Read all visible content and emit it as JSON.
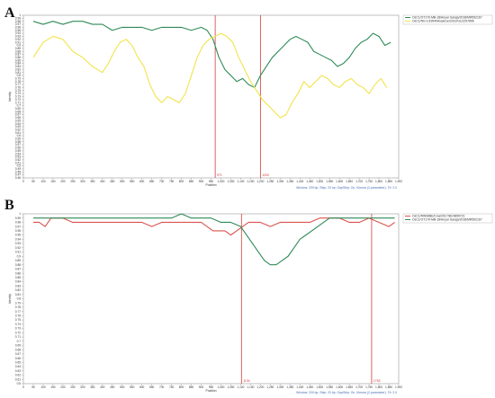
{
  "panels": [
    {
      "letter": "A"
    },
    {
      "letter": "B"
    }
  ],
  "chart_data": [
    {
      "type": "line",
      "panel": "A",
      "xlabel": "Position",
      "ylabel": "Identity",
      "xlim": [
        0,
        1900
      ],
      "ylim": [
        0.46,
        1.0
      ],
      "x_ticks": [
        0,
        50,
        100,
        150,
        200,
        250,
        300,
        350,
        400,
        450,
        500,
        550,
        600,
        650,
        700,
        750,
        800,
        850,
        900,
        950,
        1000,
        1050,
        1100,
        1150,
        1200,
        1250,
        1300,
        1350,
        1400,
        1450,
        1500,
        1550,
        1600,
        1650,
        1700,
        1750,
        1800,
        1850,
        1900
      ],
      "x_tick_labels": [
        "0",
        "50",
        "100",
        "150",
        "200",
        "250",
        "300",
        "350",
        "400",
        "450",
        "500",
        "550",
        "600",
        "650",
        "700",
        "750",
        "800",
        "850",
        "900",
        "950",
        "1,000",
        "1,050",
        "1,100",
        "1,150",
        "1,200",
        "1,250",
        "1,300",
        "1,350",
        "1,400",
        "1,450",
        "1,500",
        "1,550",
        "1,600",
        "1,650",
        "1,700",
        "1,750",
        "1,800",
        "1,850",
        "1,900"
      ],
      "y_ticks": [
        0.46,
        0.47,
        0.48,
        0.49,
        0.5,
        0.51,
        0.52,
        0.53,
        0.54,
        0.55,
        0.56,
        0.57,
        0.58,
        0.59,
        0.6,
        0.61,
        0.62,
        0.63,
        0.64,
        0.65,
        0.66,
        0.67,
        0.68,
        0.69,
        0.7,
        0.71,
        0.72,
        0.73,
        0.74,
        0.75,
        0.76,
        0.77,
        0.78,
        0.79,
        0.8,
        0.81,
        0.82,
        0.83,
        0.84,
        0.85,
        0.86,
        0.87,
        0.88,
        0.89,
        0.9,
        0.91,
        0.92,
        0.93,
        0.94,
        0.95,
        0.96,
        0.97,
        0.98,
        0.99,
        1.0
      ],
      "y_tick_labels": [
        "0.46",
        "0.47",
        "0.48",
        "0.49",
        "0.5",
        "0.51",
        "0.52",
        "0.53",
        "0.54",
        "0.55",
        "0.56",
        "0.57",
        "0.58",
        "0.59",
        "0.6",
        "0.61",
        "0.62",
        "0.63",
        "0.64",
        "0.65",
        "0.66",
        "0.67",
        "0.68",
        "0.69",
        "0.7",
        "0.71",
        "0.72",
        "0.73",
        "0.74",
        "0.75",
        "0.76",
        "0.77",
        "0.78",
        "0.79",
        "0.8",
        "0.81",
        "0.82",
        "0.83",
        "0.84",
        "0.85",
        "0.86",
        "0.87",
        "0.88",
        "0.89",
        "0.9",
        "0.91",
        "0.92",
        "0.93",
        "0.94",
        "0.95",
        "0.96",
        "0.97",
        "0.98",
        "0.99",
        "1"
      ],
      "breakpoints": [
        {
          "x": 971,
          "label": "971"
        },
        {
          "x": 1200,
          "label": "1200"
        }
      ],
      "legend_position": "top-right",
      "series": [
        {
          "name": "OsC1/OT170-MB-18/Anyar Saraja/2018/MR592167",
          "color": "#2e8b57",
          "x": [
            50,
            100,
            150,
            200,
            250,
            300,
            350,
            400,
            450,
            500,
            550,
            600,
            650,
            700,
            750,
            800,
            850,
            900,
            930,
            960,
            990,
            1020,
            1050,
            1080,
            1110,
            1140,
            1170,
            1200,
            1230,
            1260,
            1290,
            1320,
            1350,
            1380,
            1410,
            1440,
            1470,
            1500,
            1530,
            1560,
            1590,
            1620,
            1650,
            1680,
            1710,
            1740,
            1770,
            1800,
            1830,
            1860
          ],
          "y": [
            0.98,
            0.97,
            0.98,
            0.97,
            0.98,
            0.98,
            0.97,
            0.97,
            0.95,
            0.96,
            0.96,
            0.96,
            0.95,
            0.96,
            0.96,
            0.96,
            0.95,
            0.96,
            0.95,
            0.92,
            0.86,
            0.82,
            0.8,
            0.78,
            0.79,
            0.77,
            0.76,
            0.8,
            0.83,
            0.86,
            0.88,
            0.9,
            0.92,
            0.93,
            0.92,
            0.91,
            0.88,
            0.87,
            0.86,
            0.85,
            0.83,
            0.84,
            0.86,
            0.89,
            0.91,
            0.92,
            0.94,
            0.93,
            0.9,
            0.91
          ]
        },
        {
          "name": "OsC1/NG-1/1994/Musanze/2012/GU1257896",
          "color": "#f2e34b",
          "x": [
            50,
            100,
            150,
            200,
            250,
            300,
            350,
            400,
            430,
            460,
            490,
            520,
            550,
            580,
            610,
            640,
            670,
            700,
            730,
            760,
            790,
            820,
            850,
            880,
            910,
            940,
            970,
            1000,
            1030,
            1060,
            1090,
            1120,
            1150,
            1180,
            1210,
            1240,
            1270,
            1300,
            1330,
            1360,
            1390,
            1420,
            1450,
            1480,
            1510,
            1540,
            1570,
            1600,
            1630,
            1660,
            1690,
            1720,
            1750,
            1780,
            1810,
            1840
          ],
          "y": [
            0.86,
            0.91,
            0.93,
            0.92,
            0.88,
            0.86,
            0.83,
            0.81,
            0.84,
            0.88,
            0.91,
            0.92,
            0.9,
            0.86,
            0.83,
            0.77,
            0.73,
            0.71,
            0.73,
            0.72,
            0.71,
            0.74,
            0.8,
            0.86,
            0.9,
            0.92,
            0.93,
            0.94,
            0.93,
            0.91,
            0.86,
            0.82,
            0.78,
            0.75,
            0.72,
            0.7,
            0.68,
            0.66,
            0.67,
            0.71,
            0.74,
            0.78,
            0.76,
            0.78,
            0.8,
            0.79,
            0.77,
            0.76,
            0.78,
            0.79,
            0.77,
            0.76,
            0.74,
            0.77,
            0.79,
            0.76
          ]
        }
      ],
      "footer": "Window: 200 bp, Step: 20 bp, GapStrip: On, Kimura (2-parameter), T/t: 2.0"
    },
    {
      "type": "line",
      "panel": "B",
      "xlabel": "Position",
      "ylabel": "Identity",
      "xlim": [
        0,
        1900
      ],
      "ylim": [
        0.6,
        1.0
      ],
      "x_ticks": [
        0,
        50,
        100,
        150,
        200,
        250,
        300,
        350,
        400,
        450,
        500,
        550,
        600,
        650,
        700,
        750,
        800,
        850,
        900,
        950,
        1000,
        1050,
        1100,
        1150,
        1200,
        1250,
        1300,
        1350,
        1400,
        1450,
        1500,
        1550,
        1600,
        1650,
        1700,
        1750,
        1800,
        1850,
        1900
      ],
      "x_tick_labels": [
        "0",
        "50",
        "100",
        "150",
        "200",
        "250",
        "300",
        "350",
        "400",
        "450",
        "500",
        "550",
        "600",
        "650",
        "700",
        "750",
        "800",
        "850",
        "900",
        "950",
        "1,000",
        "1,050",
        "1,100",
        "1,150",
        "1,200",
        "1,250",
        "1,300",
        "1,350",
        "1,400",
        "1,450",
        "1,500",
        "1,550",
        "1,600",
        "1,650",
        "1,700",
        "1,750",
        "1,800",
        "1,850",
        "1,900"
      ],
      "y_ticks": [
        0.6,
        0.61,
        0.62,
        0.63,
        0.64,
        0.65,
        0.66,
        0.67,
        0.68,
        0.69,
        0.7,
        0.71,
        0.72,
        0.73,
        0.74,
        0.75,
        0.76,
        0.77,
        0.78,
        0.79,
        0.8,
        0.81,
        0.82,
        0.83,
        0.84,
        0.85,
        0.86,
        0.87,
        0.88,
        0.89,
        0.9,
        0.91,
        0.92,
        0.93,
        0.94,
        0.95,
        0.96,
        0.97,
        0.98,
        0.99,
        1.0
      ],
      "y_tick_labels": [
        "0.6",
        "0.61",
        "0.62",
        "0.63",
        "0.64",
        "0.65",
        "0.66",
        "0.67",
        "0.68",
        "0.69",
        "0.7",
        "0.71",
        "0.72",
        "0.73",
        "0.74",
        "0.75",
        "0.76",
        "0.77",
        "0.78",
        "0.79",
        "0.8",
        "0.81",
        "0.82",
        "0.83",
        "0.84",
        "0.85",
        "0.86",
        "0.87",
        "0.88",
        "0.89",
        "0.9",
        "0.91",
        "0.92",
        "0.93",
        "0.94",
        "0.95",
        "0.96",
        "0.97",
        "0.98",
        "0.99",
        "1"
      ],
      "breakpoints": [
        {
          "x": 1104,
          "label": "1104"
        },
        {
          "x": 1763,
          "label": "1763"
        }
      ],
      "legend_position": "top-right",
      "series": [
        {
          "name": "OsC1/RW/MBE/Cow/2017/BC4899721",
          "color": "#d9534f",
          "x": [
            50,
            80,
            110,
            140,
            170,
            200,
            250,
            300,
            350,
            400,
            450,
            500,
            550,
            600,
            650,
            700,
            750,
            800,
            850,
            900,
            930,
            960,
            990,
            1020,
            1050,
            1080,
            1110,
            1140,
            1170,
            1200,
            1250,
            1300,
            1350,
            1400,
            1450,
            1500,
            1550,
            1600,
            1650,
            1700,
            1750,
            1800,
            1850,
            1880
          ],
          "y": [
            0.98,
            0.98,
            0.97,
            0.99,
            0.99,
            0.99,
            0.98,
            0.98,
            0.98,
            0.98,
            0.98,
            0.98,
            0.98,
            0.98,
            0.97,
            0.98,
            0.98,
            0.98,
            0.98,
            0.98,
            0.97,
            0.96,
            0.96,
            0.96,
            0.95,
            0.96,
            0.97,
            0.98,
            0.98,
            0.98,
            0.97,
            0.98,
            0.98,
            0.98,
            0.98,
            0.99,
            0.99,
            0.99,
            0.98,
            0.98,
            0.99,
            0.98,
            0.97,
            0.98
          ]
        },
        {
          "name": "OsC1/OT170-MB-18/Anyar Saraja/2018/MR592167",
          "color": "#2e8b57",
          "x": [
            50,
            100,
            150,
            200,
            250,
            300,
            350,
            400,
            450,
            500,
            550,
            600,
            650,
            700,
            750,
            800,
            850,
            900,
            950,
            1000,
            1050,
            1100,
            1130,
            1160,
            1190,
            1220,
            1250,
            1280,
            1310,
            1340,
            1370,
            1400,
            1430,
            1460,
            1490,
            1520,
            1550,
            1600,
            1650,
            1700,
            1750,
            1800,
            1850,
            1880
          ],
          "y": [
            0.99,
            0.99,
            0.99,
            0.99,
            0.99,
            0.99,
            0.99,
            0.99,
            0.99,
            0.99,
            0.99,
            0.99,
            0.99,
            0.99,
            0.99,
            1.0,
            0.99,
            0.99,
            0.99,
            0.98,
            0.98,
            0.97,
            0.95,
            0.93,
            0.91,
            0.89,
            0.88,
            0.88,
            0.89,
            0.9,
            0.92,
            0.94,
            0.95,
            0.96,
            0.97,
            0.98,
            0.99,
            0.99,
            0.99,
            0.99,
            0.99,
            0.99,
            0.99,
            0.99
          ]
        }
      ],
      "footer": "Window: 200 bp, Step: 20 bp, GapStrip: On, Kimura (2-parameter), T/t: 2.0"
    }
  ]
}
